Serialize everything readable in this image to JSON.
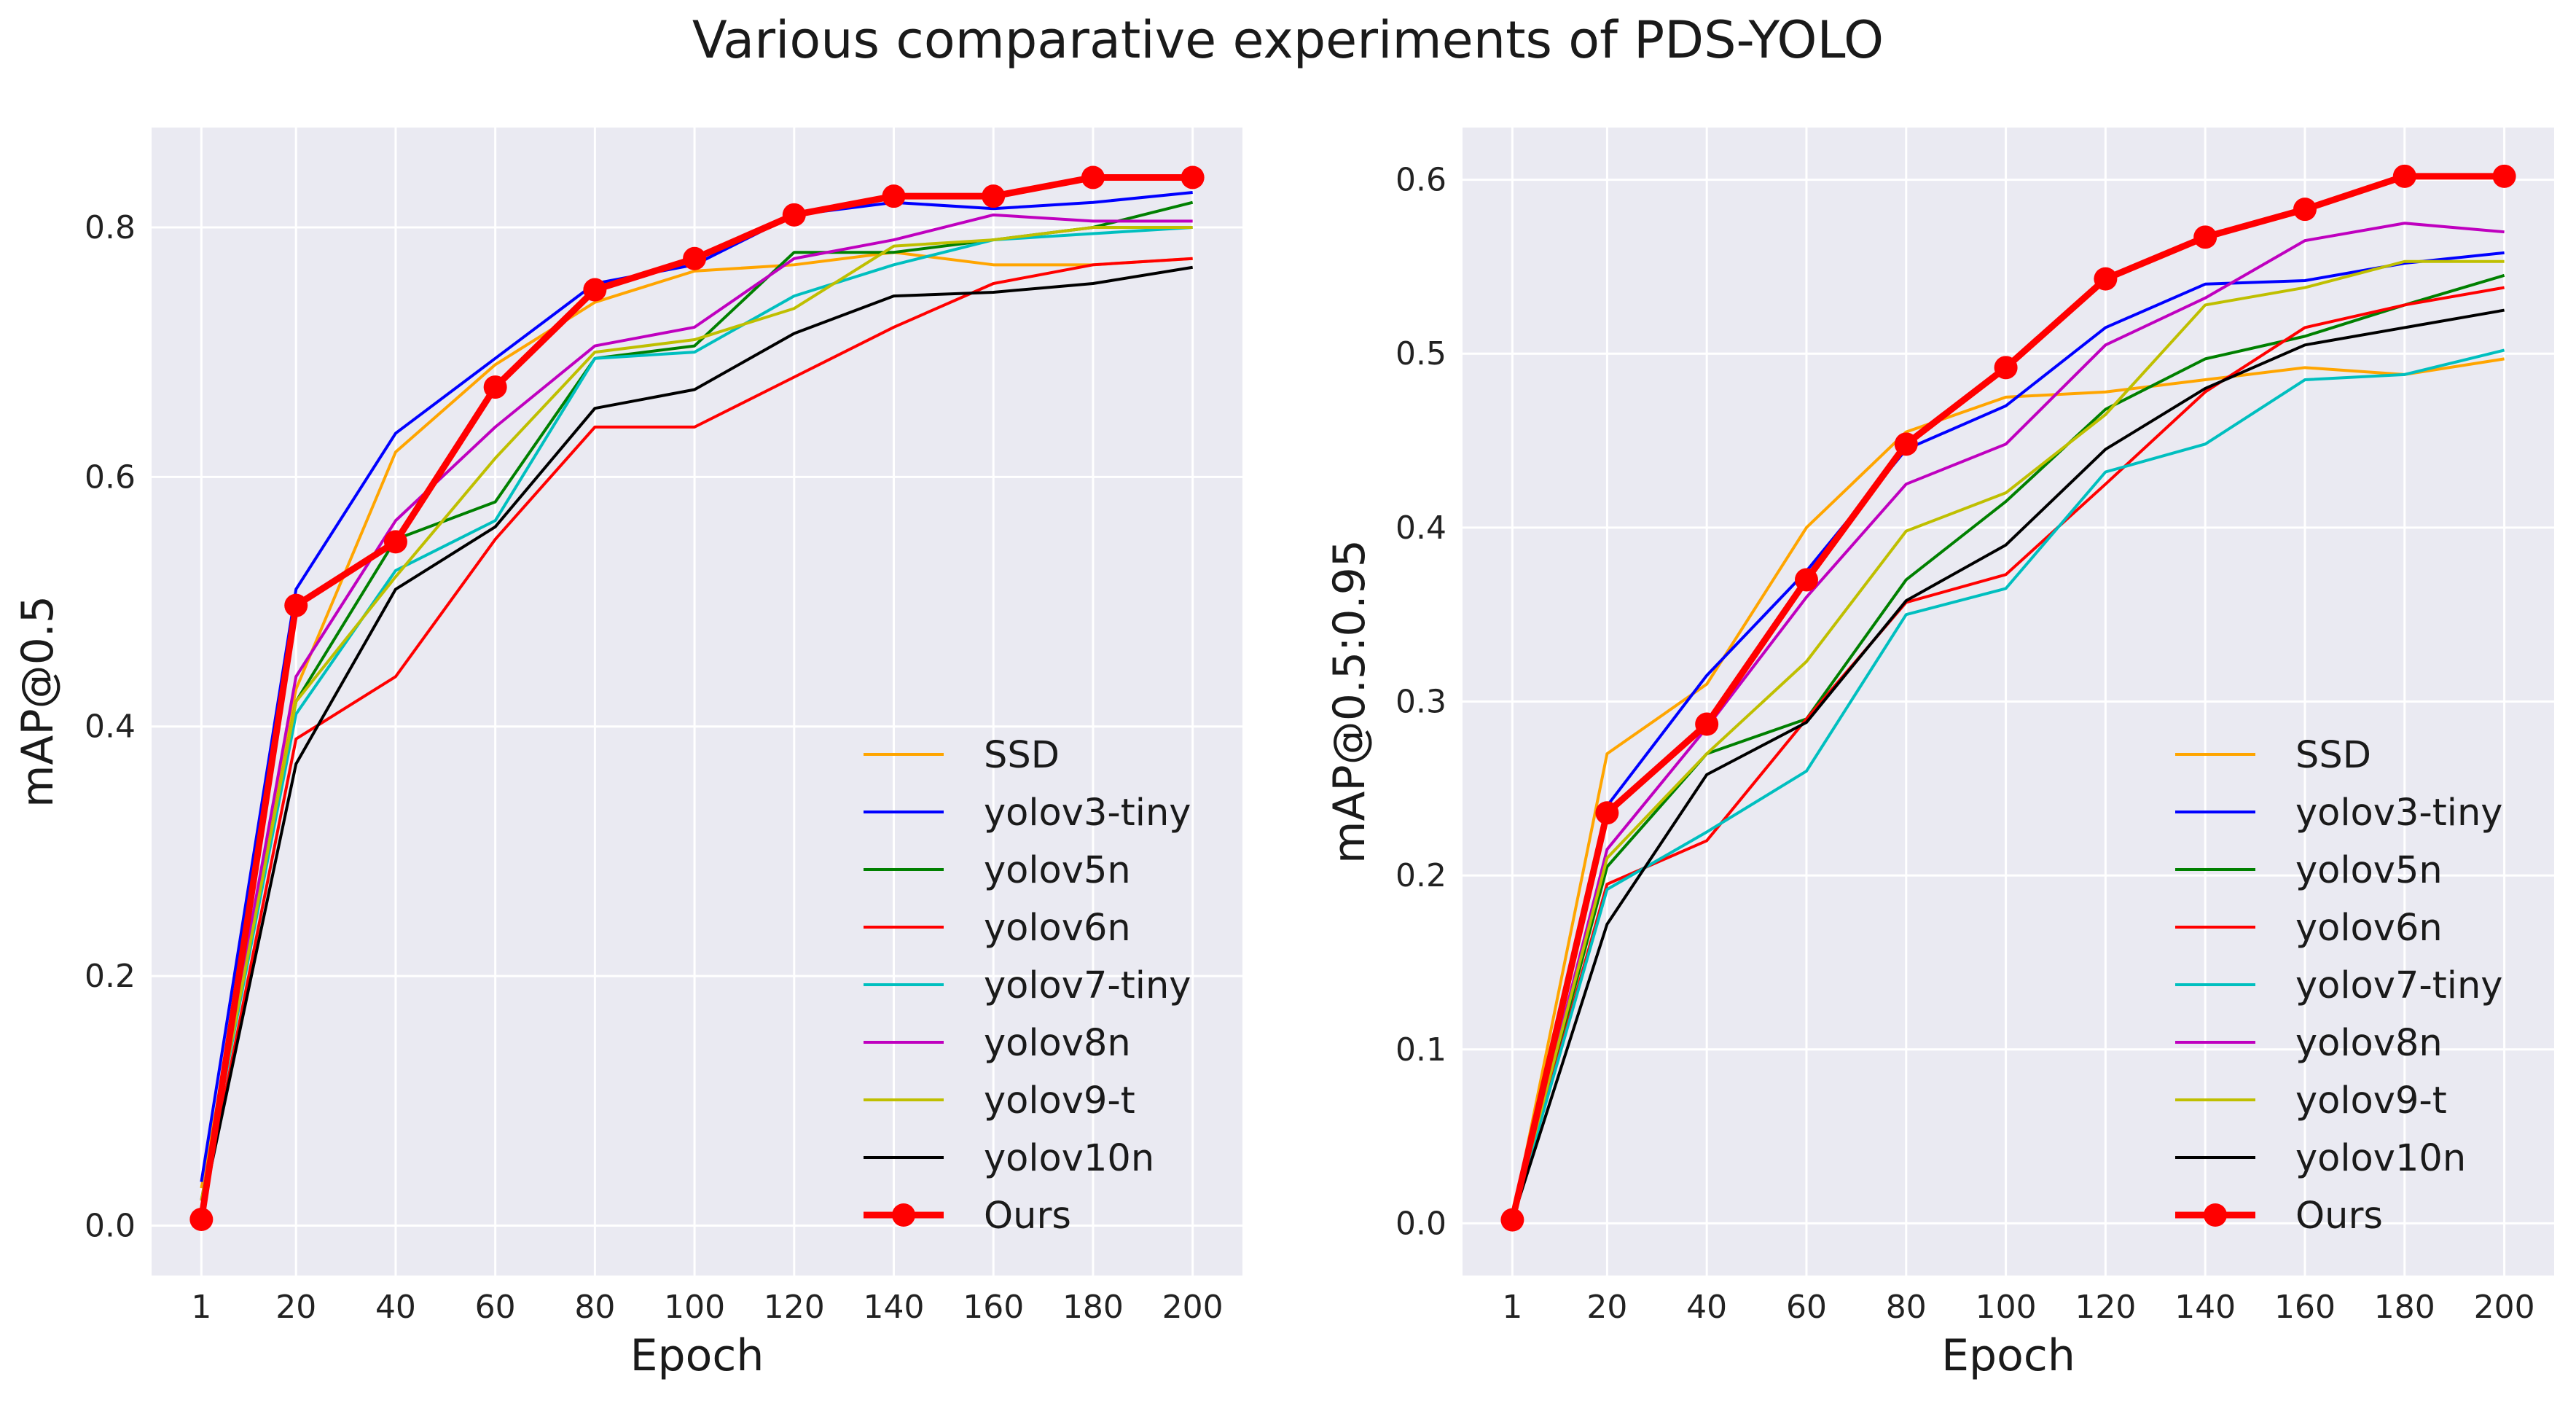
{
  "title": "Various comparative experiments of PDS-YOLO",
  "chart_data": [
    {
      "type": "line",
      "xlabel": "Epoch",
      "ylabel": "mAP@0.5",
      "x": [
        1,
        20,
        40,
        60,
        80,
        100,
        120,
        140,
        160,
        180,
        200
      ],
      "xticks": [
        "1",
        "20",
        "40",
        "60",
        "80",
        "100",
        "120",
        "140",
        "160",
        "180",
        "200"
      ],
      "yticks": [
        "0.0",
        "0.2",
        "0.4",
        "0.6",
        "0.8"
      ],
      "ylim": [
        -0.04,
        0.88
      ],
      "legend_position": "lower-right",
      "grid": true,
      "series": [
        {
          "name": "SSD",
          "color": "#FFA500",
          "values": [
            0.03,
            0.43,
            0.62,
            0.69,
            0.74,
            0.765,
            0.77,
            0.78,
            0.77,
            0.77,
            0.775
          ]
        },
        {
          "name": "yolov3-tiny",
          "color": "#0000FF",
          "values": [
            0.035,
            0.51,
            0.635,
            0.695,
            0.755,
            0.77,
            0.81,
            0.82,
            0.815,
            0.82,
            0.828
          ]
        },
        {
          "name": "yolov5n",
          "color": "#008000",
          "values": [
            0.02,
            0.42,
            0.55,
            0.58,
            0.695,
            0.705,
            0.78,
            0.78,
            0.79,
            0.8,
            0.82
          ]
        },
        {
          "name": "yolov6n",
          "color": "#FF0000",
          "values": [
            0.01,
            0.39,
            0.44,
            0.55,
            0.64,
            0.64,
            0.68,
            0.72,
            0.755,
            0.77,
            0.775
          ]
        },
        {
          "name": "yolov7-tiny",
          "color": "#00BFBF",
          "values": [
            0.02,
            0.41,
            0.525,
            0.565,
            0.695,
            0.7,
            0.745,
            0.77,
            0.79,
            0.795,
            0.8
          ]
        },
        {
          "name": "yolov8n",
          "color": "#BF00BF",
          "values": [
            0.02,
            0.44,
            0.565,
            0.64,
            0.705,
            0.72,
            0.775,
            0.79,
            0.81,
            0.805,
            0.805
          ]
        },
        {
          "name": "yolov9-t",
          "color": "#BFBF00",
          "values": [
            0.02,
            0.42,
            0.52,
            0.615,
            0.7,
            0.71,
            0.735,
            0.785,
            0.79,
            0.8,
            0.8
          ]
        },
        {
          "name": "yolov10n",
          "color": "#000000",
          "values": [
            0.01,
            0.37,
            0.51,
            0.56,
            0.655,
            0.67,
            0.715,
            0.745,
            0.748,
            0.755,
            0.768
          ]
        },
        {
          "name": "Ours",
          "color": "#FF0000",
          "marker": "circle",
          "values": [
            0.005,
            0.497,
            0.548,
            0.672,
            0.75,
            0.775,
            0.81,
            0.825,
            0.825,
            0.84,
            0.84
          ]
        }
      ]
    },
    {
      "type": "line",
      "xlabel": "Epoch",
      "ylabel": "mAP@0.5:0.95",
      "x": [
        1,
        20,
        40,
        60,
        80,
        100,
        120,
        140,
        160,
        180,
        200
      ],
      "xticks": [
        "1",
        "20",
        "40",
        "60",
        "80",
        "100",
        "120",
        "140",
        "160",
        "180",
        "200"
      ],
      "yticks": [
        "0.0",
        "0.1",
        "0.2",
        "0.3",
        "0.4",
        "0.5",
        "0.6"
      ],
      "ylim": [
        -0.03,
        0.63
      ],
      "legend_position": "lower-right",
      "grid": true,
      "series": [
        {
          "name": "SSD",
          "color": "#FFA500",
          "values": [
            0.002,
            0.27,
            0.31,
            0.4,
            0.455,
            0.475,
            0.478,
            0.485,
            0.492,
            0.488,
            0.497
          ]
        },
        {
          "name": "yolov3-tiny",
          "color": "#0000FF",
          "values": [
            0.002,
            0.24,
            0.315,
            0.375,
            0.445,
            0.47,
            0.515,
            0.54,
            0.542,
            0.552,
            0.558
          ]
        },
        {
          "name": "yolov5n",
          "color": "#008000",
          "values": [
            0.002,
            0.205,
            0.27,
            0.29,
            0.37,
            0.415,
            0.468,
            0.497,
            0.51,
            0.528,
            0.545
          ]
        },
        {
          "name": "yolov6n",
          "color": "#FF0000",
          "values": [
            0.002,
            0.195,
            0.22,
            0.29,
            0.357,
            0.373,
            0.425,
            0.478,
            0.515,
            0.528,
            0.538
          ]
        },
        {
          "name": "yolov7-tiny",
          "color": "#00BFBF",
          "values": [
            0.002,
            0.192,
            0.225,
            0.26,
            0.35,
            0.365,
            0.432,
            0.448,
            0.485,
            0.488,
            0.502
          ]
        },
        {
          "name": "yolov8n",
          "color": "#BF00BF",
          "values": [
            0.002,
            0.215,
            0.285,
            0.36,
            0.425,
            0.448,
            0.505,
            0.532,
            0.565,
            0.575,
            0.57
          ]
        },
        {
          "name": "yolov9-t",
          "color": "#BFBF00",
          "values": [
            0.002,
            0.21,
            0.27,
            0.323,
            0.398,
            0.42,
            0.465,
            0.528,
            0.538,
            0.553,
            0.553
          ]
        },
        {
          "name": "yolov10n",
          "color": "#000000",
          "values": [
            0.002,
            0.172,
            0.258,
            0.288,
            0.358,
            0.39,
            0.445,
            0.48,
            0.505,
            0.515,
            0.525
          ]
        },
        {
          "name": "Ours",
          "color": "#FF0000",
          "marker": "circle",
          "values": [
            0.002,
            0.236,
            0.287,
            0.37,
            0.448,
            0.492,
            0.543,
            0.567,
            0.583,
            0.602,
            0.602
          ]
        }
      ]
    }
  ]
}
